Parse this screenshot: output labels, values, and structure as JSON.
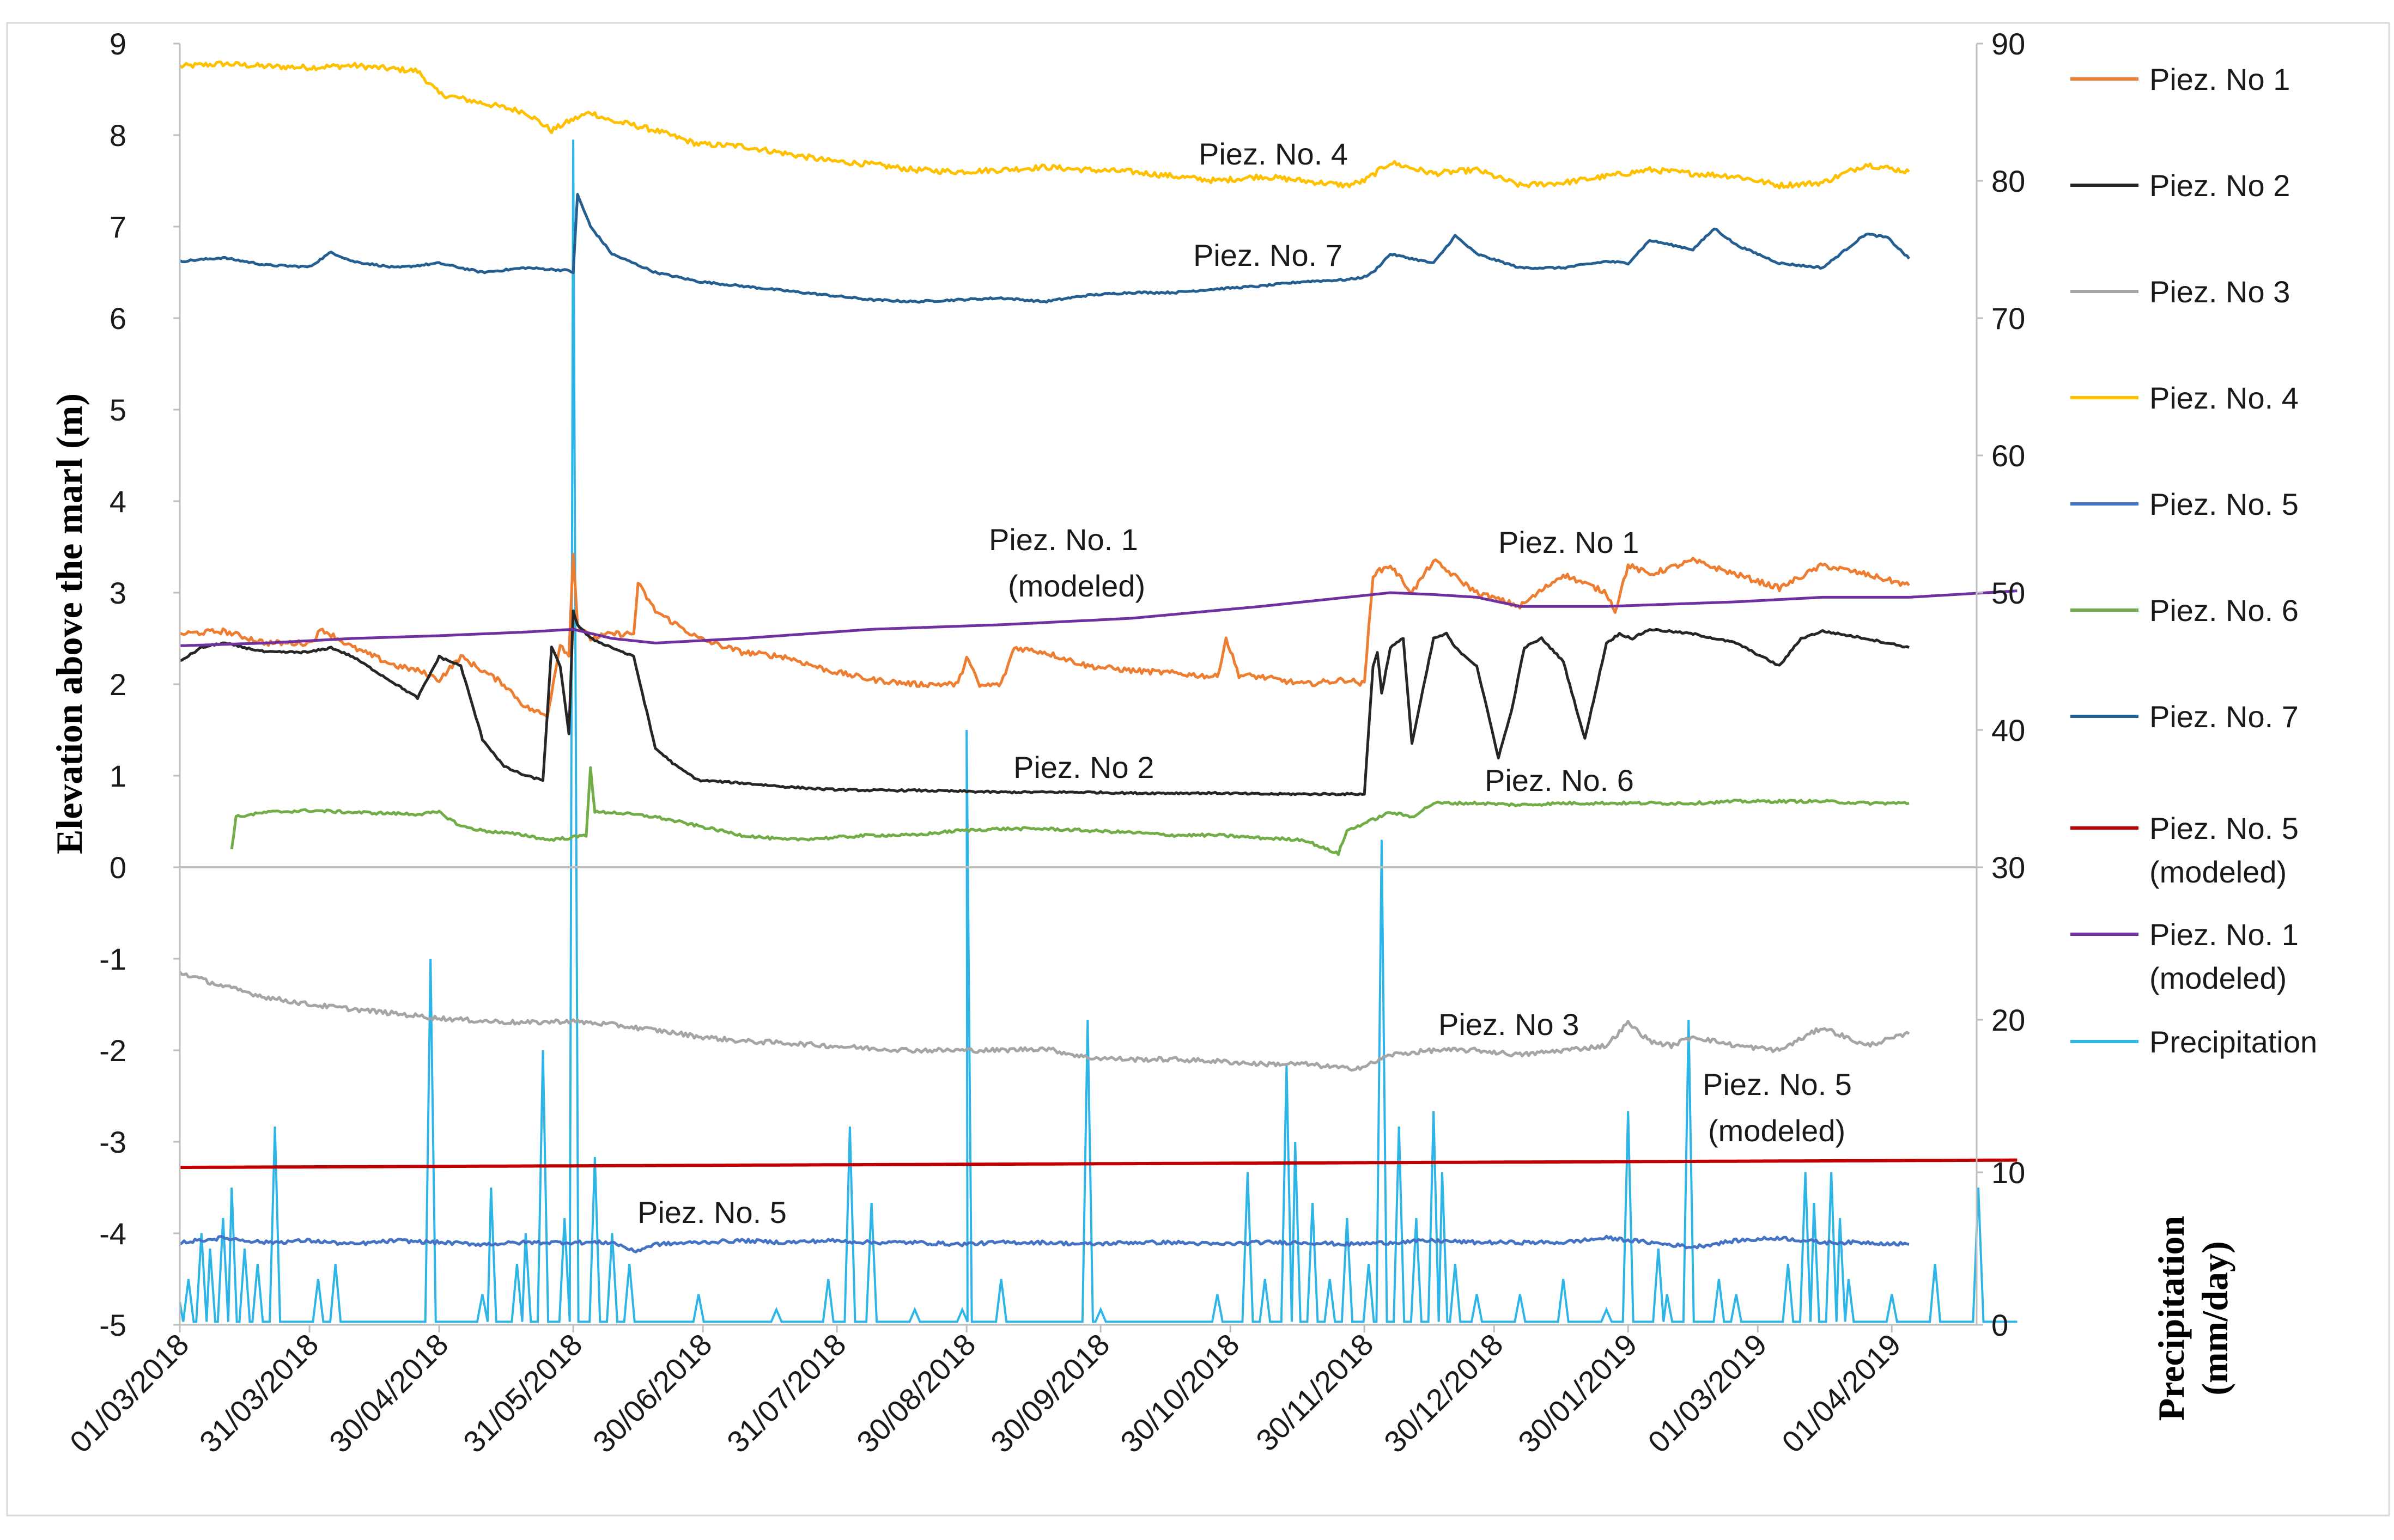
{
  "chart_data": {
    "type": "line",
    "left_axis": {
      "label": "Elevation above the marl (m)",
      "range": [
        -5,
        9
      ],
      "ticks": [
        "9",
        "8",
        "7",
        "6",
        "5",
        "4",
        "3",
        "2",
        "1",
        "0",
        "-1",
        "-2",
        "-3",
        "-4",
        "-5"
      ]
    },
    "right_axis": {
      "label_line1": "Precipitation",
      "label_line2": "(mm/day)",
      "upper_ticks": [
        "90",
        "80",
        "70",
        "60",
        "50",
        "40"
      ],
      "lower_ticks": [
        "30",
        "20",
        "10",
        "0"
      ]
    },
    "x_axis": {
      "start": "2018-03-01",
      "end": "2019-04-30",
      "tick_labels": [
        "01/03/2018",
        "31/03/2018",
        "30/04/2018",
        "31/05/2018",
        "30/06/2018",
        "31/07/2018",
        "30/08/2018",
        "30/09/2018",
        "30/10/2018",
        "30/11/2018",
        "30/12/2018",
        "30/01/2019",
        "01/03/2019",
        "01/04/2019"
      ],
      "tick_days": [
        0,
        30,
        60,
        91,
        121,
        152,
        182,
        213,
        243,
        274,
        304,
        335,
        365,
        396
      ]
    },
    "legend": [
      {
        "name": "Piez. No 1",
        "color": "#ED7D31"
      },
      {
        "name": "Piez. No 2",
        "color": "#262626"
      },
      {
        "name": "Piez. No 3",
        "color": "#A5A5A5"
      },
      {
        "name": "Piez. No. 4",
        "color": "#FFC000"
      },
      {
        "name": "Piez. No. 5",
        "color": "#4472C4"
      },
      {
        "name": "Piez. No. 6",
        "color": "#70AD47"
      },
      {
        "name": "Piez. No. 7",
        "color": "#255E91"
      },
      {
        "name": "Piez. No. 5 (modeled)",
        "line1": "Piez. No. 5",
        "line2": "(modeled)",
        "color": "#C00000"
      },
      {
        "name": "Piez. No. 1 (modeled)",
        "line1": "Piez. No. 1",
        "line2": "(modeled)",
        "color": "#7030A0"
      },
      {
        "name": "Precipitation",
        "color": "#2EB5E8"
      }
    ],
    "annotations": {
      "p4": "Piez. No. 4",
      "p7": "Piez. No. 7",
      "p1m_line1": "Piez. No. 1",
      "p1m_line2": "(modeled)",
      "p1": "Piez. No 1",
      "p2": "Piez. No 2",
      "p6": "Piez. No. 6",
      "p3": "Piez. No 3",
      "p5m_line1": "Piez. No. 5",
      "p5m_line2": "(modeled)",
      "p5": "Piez. No. 5"
    },
    "series": [
      {
        "key": "p4",
        "name": "Piez. No. 4",
        "color": "#FFC000",
        "days": [
          0,
          10,
          20,
          30,
          40,
          50,
          55,
          60,
          70,
          80,
          86,
          90,
          95,
          100,
          104,
          110,
          120,
          130,
          140,
          150,
          160,
          170,
          180,
          190,
          200,
          210,
          220,
          230,
          240,
          250,
          260,
          270,
          274,
          280,
          290,
          300,
          310,
          320,
          330,
          340,
          350,
          360,
          370,
          380,
          390,
          400
        ],
        "values": [
          8.75,
          8.78,
          8.75,
          8.74,
          8.76,
          8.72,
          8.7,
          8.45,
          8.35,
          8.25,
          8.05,
          8.15,
          8.25,
          8.15,
          8.12,
          8.05,
          7.9,
          7.88,
          7.8,
          7.72,
          7.68,
          7.62,
          7.6,
          7.62,
          7.65,
          7.62,
          7.6,
          7.55,
          7.5,
          7.55,
          7.5,
          7.45,
          7.5,
          7.7,
          7.58,
          7.62,
          7.45,
          7.48,
          7.55,
          7.62,
          7.58,
          7.55,
          7.45,
          7.48,
          7.68,
          7.6
        ]
      },
      {
        "key": "p7",
        "name": "Piez. No. 7",
        "color": "#255E91",
        "days": [
          0,
          10,
          20,
          30,
          35,
          40,
          50,
          60,
          70,
          80,
          90,
          91,
          92,
          95,
          100,
          110,
          120,
          130,
          140,
          150,
          160,
          170,
          180,
          190,
          200,
          210,
          220,
          230,
          240,
          250,
          260,
          270,
          274,
          276,
          280,
          290,
          295,
          300,
          310,
          320,
          330,
          335,
          340,
          350,
          355,
          360,
          370,
          380,
          390,
          395,
          400
        ],
        "values": [
          6.62,
          6.66,
          6.58,
          6.56,
          6.72,
          6.62,
          6.55,
          6.6,
          6.5,
          6.55,
          6.52,
          6.5,
          7.35,
          7.0,
          6.7,
          6.5,
          6.4,
          6.35,
          6.3,
          6.25,
          6.2,
          6.18,
          6.2,
          6.22,
          6.18,
          6.25,
          6.28,
          6.28,
          6.32,
          6.35,
          6.4,
          6.42,
          6.45,
          6.5,
          6.7,
          6.6,
          6.9,
          6.7,
          6.55,
          6.55,
          6.62,
          6.6,
          6.85,
          6.75,
          6.98,
          6.8,
          6.6,
          6.55,
          6.92,
          6.88,
          6.65
        ]
      },
      {
        "key": "p1",
        "name": "Piez. No 1",
        "color": "#ED7D31",
        "days": [
          0,
          10,
          20,
          30,
          33,
          40,
          50,
          55,
          60,
          65,
          70,
          75,
          80,
          85,
          88,
          90,
          91,
          92,
          95,
          100,
          105,
          106,
          110,
          120,
          130,
          140,
          150,
          160,
          170,
          180,
          182,
          185,
          190,
          193,
          200,
          210,
          220,
          230,
          240,
          242,
          245,
          250,
          260,
          270,
          274,
          276,
          280,
          285,
          290,
          300,
          310,
          320,
          330,
          332,
          335,
          340,
          350,
          360,
          370,
          380,
          390,
          400
        ],
        "values": [
          2.55,
          2.58,
          2.45,
          2.45,
          2.6,
          2.4,
          2.2,
          2.15,
          2.05,
          2.3,
          2.15,
          2.0,
          1.75,
          1.65,
          2.45,
          2.3,
          3.45,
          2.65,
          2.5,
          2.55,
          2.55,
          3.1,
          2.8,
          2.5,
          2.35,
          2.3,
          2.15,
          2.05,
          2.0,
          2.0,
          2.3,
          1.98,
          2.0,
          2.4,
          2.35,
          2.2,
          2.15,
          2.12,
          2.08,
          2.5,
          2.1,
          2.08,
          2.0,
          2.05,
          2.0,
          3.2,
          3.3,
          3.0,
          3.35,
          3.0,
          2.85,
          3.2,
          3.0,
          2.8,
          3.3,
          3.2,
          3.35,
          3.2,
          3.05,
          3.3,
          3.2,
          3.08
        ]
      },
      {
        "key": "p2",
        "name": "Piez. No 2",
        "color": "#262626",
        "days": [
          0,
          5,
          10,
          20,
          30,
          35,
          40,
          50,
          55,
          60,
          65,
          70,
          75,
          80,
          84,
          86,
          88,
          90,
          91,
          92,
          95,
          100,
          105,
          110,
          115,
          120,
          130,
          140,
          150,
          160,
          170,
          180,
          190,
          200,
          210,
          220,
          230,
          240,
          250,
          260,
          270,
          274,
          276,
          277,
          278,
          280,
          283,
          285,
          290,
          293,
          295,
          300,
          305,
          308,
          311,
          315,
          320,
          325,
          330,
          333,
          336,
          340,
          350,
          360,
          370,
          375,
          380,
          390,
          400
        ],
        "values": [
          2.25,
          2.4,
          2.45,
          2.35,
          2.35,
          2.4,
          2.3,
          2.0,
          1.85,
          2.3,
          2.2,
          1.4,
          1.1,
          1.0,
          0.95,
          2.4,
          2.2,
          1.45,
          2.8,
          2.65,
          2.5,
          2.4,
          2.3,
          1.3,
          1.1,
          0.95,
          0.92,
          0.88,
          0.85,
          0.84,
          0.84,
          0.83,
          0.82,
          0.82,
          0.82,
          0.81,
          0.81,
          0.81,
          0.8,
          0.8,
          0.8,
          0.8,
          2.2,
          2.35,
          1.9,
          2.4,
          2.5,
          1.35,
          2.5,
          2.55,
          2.4,
          2.2,
          1.2,
          1.7,
          2.4,
          2.5,
          2.25,
          1.4,
          2.45,
          2.55,
          2.5,
          2.6,
          2.55,
          2.45,
          2.2,
          2.5,
          2.58,
          2.5,
          2.4
        ]
      },
      {
        "key": "p6",
        "name": "Piez. No. 6",
        "color": "#70AD47",
        "days": [
          12,
          13,
          20,
          30,
          40,
          55,
          60,
          65,
          70,
          80,
          85,
          90,
          94,
          95,
          96,
          100,
          110,
          120,
          130,
          140,
          150,
          160,
          170,
          180,
          190,
          200,
          210,
          220,
          230,
          240,
          250,
          260,
          265,
          268,
          270,
          275,
          280,
          285,
          290,
          300,
          310,
          320,
          330,
          340,
          350,
          360,
          370,
          380,
          390,
          400
        ],
        "values": [
          0.2,
          0.55,
          0.6,
          0.62,
          0.6,
          0.58,
          0.6,
          0.45,
          0.4,
          0.35,
          0.3,
          0.32,
          0.35,
          1.1,
          0.6,
          0.6,
          0.55,
          0.45,
          0.35,
          0.3,
          0.32,
          0.35,
          0.35,
          0.4,
          0.42,
          0.42,
          0.4,
          0.38,
          0.35,
          0.35,
          0.32,
          0.3,
          0.2,
          0.15,
          0.4,
          0.5,
          0.6,
          0.55,
          0.7,
          0.7,
          0.68,
          0.7,
          0.7,
          0.7,
          0.7,
          0.72,
          0.72,
          0.72,
          0.7,
          0.7
        ]
      },
      {
        "key": "p3",
        "name": "Piez. No 3",
        "color": "#A5A5A5",
        "days": [
          0,
          10,
          20,
          30,
          40,
          50,
          60,
          70,
          80,
          90,
          100,
          110,
          120,
          130,
          140,
          150,
          160,
          170,
          180,
          190,
          200,
          210,
          220,
          230,
          240,
          250,
          260,
          270,
          274,
          280,
          290,
          300,
          310,
          320,
          330,
          335,
          340,
          345,
          350,
          360,
          370,
          380,
          390,
          400
        ],
        "values": [
          -1.15,
          -1.3,
          -1.42,
          -1.5,
          -1.55,
          -1.6,
          -1.65,
          -1.68,
          -1.7,
          -1.68,
          -1.72,
          -1.78,
          -1.85,
          -1.9,
          -1.92,
          -1.95,
          -1.98,
          -2.0,
          -2.0,
          -2.0,
          -1.98,
          -2.08,
          -2.1,
          -2.1,
          -2.12,
          -2.15,
          -2.15,
          -2.2,
          -2.18,
          -2.05,
          -2.0,
          -2.0,
          -2.05,
          -2.0,
          -1.95,
          -1.7,
          -1.9,
          -1.95,
          -1.85,
          -1.95,
          -2.0,
          -1.75,
          -1.95,
          -1.82
        ]
      },
      {
        "key": "p5",
        "name": "Piez. No. 5",
        "color": "#4472C4",
        "days": [
          0,
          10,
          20,
          30,
          40,
          50,
          60,
          70,
          80,
          90,
          100,
          103,
          105,
          110,
          120,
          130,
          140,
          150,
          160,
          170,
          180,
          190,
          200,
          210,
          220,
          230,
          240,
          250,
          260,
          270,
          280,
          290,
          300,
          310,
          320,
          330,
          340,
          350,
          360,
          370,
          380,
          390,
          400
        ],
        "values": [
          -4.1,
          -4.05,
          -4.1,
          -4.08,
          -4.12,
          -4.08,
          -4.1,
          -4.12,
          -4.1,
          -4.1,
          -4.1,
          -4.15,
          -4.2,
          -4.12,
          -4.1,
          -4.08,
          -4.1,
          -4.08,
          -4.1,
          -4.1,
          -4.12,
          -4.1,
          -4.1,
          -4.12,
          -4.1,
          -4.1,
          -4.12,
          -4.1,
          -4.1,
          -4.12,
          -4.1,
          -4.08,
          -4.1,
          -4.1,
          -4.1,
          -4.05,
          -4.1,
          -4.15,
          -4.08,
          -4.05,
          -4.1,
          -4.1,
          -4.12
        ]
      },
      {
        "key": "p5m",
        "name": "Piez. No. 5 (modeled)",
        "color": "#C00000",
        "days": [
          0,
          425
        ],
        "values": [
          -3.28,
          -3.2
        ]
      },
      {
        "key": "p1m",
        "name": "Piez. No. 1 (modeled)",
        "color": "#7030A0",
        "days": [
          0,
          20,
          40,
          60,
          80,
          91,
          100,
          110,
          130,
          160,
          190,
          220,
          250,
          270,
          280,
          290,
          300,
          310,
          330,
          360,
          380,
          400,
          425
        ],
        "values": [
          2.42,
          2.45,
          2.5,
          2.53,
          2.57,
          2.6,
          2.5,
          2.45,
          2.5,
          2.6,
          2.65,
          2.72,
          2.85,
          2.95,
          3.0,
          2.98,
          2.95,
          2.85,
          2.85,
          2.9,
          2.95,
          2.95,
          3.02
        ]
      }
    ],
    "precipitation": {
      "name": "Precipitation",
      "unit": "mm/day",
      "base": 0.5,
      "spikes": [
        [
          2,
          3
        ],
        [
          5,
          6
        ],
        [
          7,
          5
        ],
        [
          10,
          7
        ],
        [
          12,
          9
        ],
        [
          15,
          5
        ],
        [
          18,
          4
        ],
        [
          22,
          13
        ],
        [
          32,
          3
        ],
        [
          36,
          4
        ],
        [
          58,
          24
        ],
        [
          70,
          2
        ],
        [
          72,
          9
        ],
        [
          78,
          4
        ],
        [
          80,
          6
        ],
        [
          84,
          18
        ],
        [
          89,
          7
        ],
        [
          91,
          83
        ],
        [
          96,
          11
        ],
        [
          100,
          6
        ],
        [
          104,
          4
        ],
        [
          120,
          2
        ],
        [
          138,
          1
        ],
        [
          150,
          3
        ],
        [
          155,
          13
        ],
        [
          160,
          8
        ],
        [
          170,
          1
        ],
        [
          181,
          1
        ],
        [
          182,
          40
        ],
        [
          190,
          3
        ],
        [
          210,
          20
        ],
        [
          213,
          1
        ],
        [
          240,
          2
        ],
        [
          247,
          10
        ],
        [
          251,
          3
        ],
        [
          256,
          17
        ],
        [
          258,
          12
        ],
        [
          262,
          8
        ],
        [
          266,
          3
        ],
        [
          270,
          7
        ],
        [
          275,
          4
        ],
        [
          278,
          32
        ],
        [
          282,
          13
        ],
        [
          286,
          7
        ],
        [
          290,
          14
        ],
        [
          292,
          10
        ],
        [
          295,
          4
        ],
        [
          300,
          2
        ],
        [
          310,
          2
        ],
        [
          320,
          3
        ],
        [
          330,
          1
        ],
        [
          335,
          14
        ],
        [
          342,
          5
        ],
        [
          344,
          2
        ],
        [
          349,
          20
        ],
        [
          356,
          3
        ],
        [
          360,
          2
        ],
        [
          372,
          4
        ],
        [
          376,
          10
        ],
        [
          378,
          8
        ],
        [
          382,
          10
        ],
        [
          384,
          7
        ],
        [
          386,
          3
        ],
        [
          396,
          2
        ],
        [
          406,
          4
        ],
        [
          416,
          9
        ]
      ]
    }
  }
}
